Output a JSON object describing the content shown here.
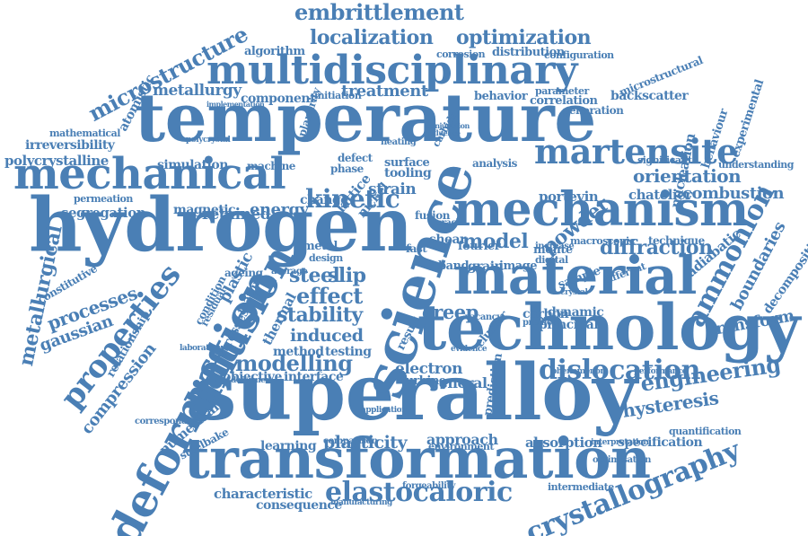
{
  "palette": {
    "word": "#4a7fb5",
    "background": "#ffffff"
  },
  "words": [
    "temperature",
    "hydrogen",
    "superalloy",
    "transformation",
    "technology",
    "material",
    "mechanism",
    "science",
    "mechanical",
    "deformation",
    "multidisciplinary",
    "martensite",
    "diffusion",
    "properties",
    "crystallography",
    "elastocaloric",
    "embrittlement",
    "localization",
    "optimization",
    "microstructure",
    "kinetic",
    "ammonion",
    "dislocation",
    "engineering",
    "modelling",
    "model",
    "stability",
    "orientation",
    "diffraction",
    "hysteresis",
    "plasticity",
    "effect",
    "metallurgical",
    "metallurgy",
    "treatment",
    "steel",
    "slip",
    "creep",
    "retained",
    "energy",
    "segregation",
    "processes",
    "compression",
    "gaussian",
    "powder",
    "boundaries",
    "decomposition",
    "transform",
    "combustion",
    "chatelier",
    "portevin",
    "adiabatic",
    "induced",
    "interface",
    "objective",
    "electron",
    "absorption",
    "specification",
    "characteristic",
    "consequence",
    "approach",
    "nucleation",
    "backscatter",
    "correlation",
    "generation",
    "component",
    "polycrystalline",
    "irreversibility",
    "mathematical",
    "algorithm",
    "distribution",
    "configuration",
    "corrosion",
    "analysis",
    "tooling",
    "strain",
    "surface",
    "lattice",
    "nickel",
    "change",
    "simulation",
    "magnetic",
    "machine",
    "stresses",
    "plastic",
    "feature",
    "thermal",
    "method",
    "testing",
    "fourier",
    "band",
    "grain",
    "image",
    "sample",
    "monte",
    "digital",
    "macroscopic",
    "technique",
    "different",
    "shear",
    "carbon",
    "dynamic",
    "principal",
    "predict",
    "general",
    "turbine",
    "prediction",
    "numerical",
    "relationship",
    "steelbake",
    "learning",
    "comparison",
    "environment",
    "optimisation",
    "intermediate",
    "forgeability",
    "quantification",
    "microstructural",
    "experimental",
    "behaviour",
    "understanding",
    "significant",
    "phase",
    "defect",
    "heating",
    "initiation",
    "planarity",
    "atomistic",
    "permeation",
    "constitutive",
    "ageing",
    "condition",
    "residual",
    "behavior",
    "parameter",
    "increase",
    "crack",
    "fast",
    "metal",
    "fusion",
    "average",
    "crystal",
    "interpretation",
    "performance",
    "phenomenon",
    "manufacturing",
    "correspond",
    "application",
    "laboratory",
    "polycrystal",
    "implementation",
    "conjunction",
    "influence",
    "carbide",
    "evidence",
    "vacancy",
    "cluster",
    "result",
    "design",
    "deformed"
  ]
}
